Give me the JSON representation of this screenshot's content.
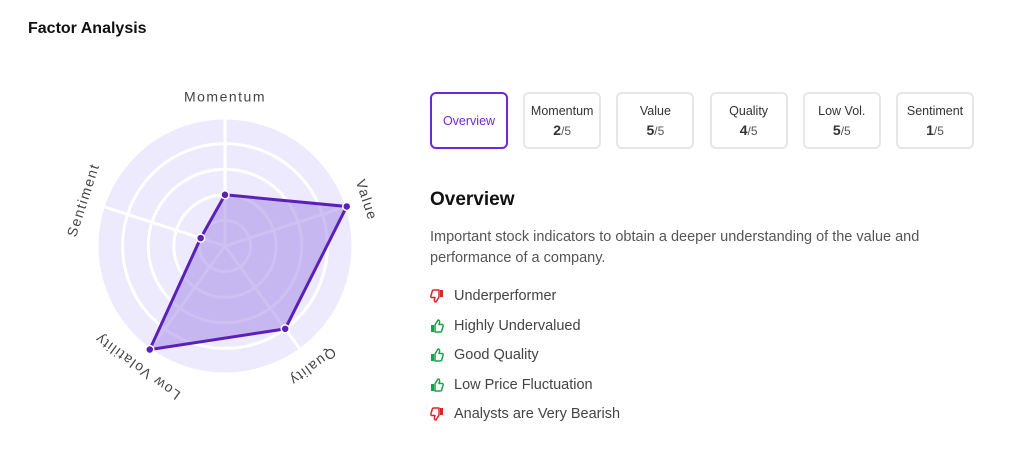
{
  "header": {
    "title": "Factor Analysis"
  },
  "chart_data": {
    "type": "radar",
    "categories": [
      "Momentum",
      "Value",
      "Quality",
      "Low Volatility",
      "Sentiment"
    ],
    "values": [
      2,
      5,
      4,
      5,
      1
    ],
    "rlim": [
      0,
      5
    ],
    "rticks": [
      1,
      2,
      3,
      4,
      5
    ],
    "color": "#5b21b6",
    "fill": "#a58ce8",
    "grid": true
  },
  "tabs": {
    "selected": 0,
    "items": [
      "Overview",
      "Momentum",
      "Value",
      "Quality",
      "Low Vol.",
      "Sentiment"
    ],
    "score_suffix": "/5"
  },
  "overview": {
    "heading": "Overview",
    "description": "Important stock indicators to obtain a deeper understanding of the value and performance of a company.",
    "items": [
      {
        "text": "Underperformer",
        "sentiment": "negative"
      },
      {
        "text": "Highly Undervalued",
        "sentiment": "positive"
      },
      {
        "text": "Good Quality",
        "sentiment": "positive"
      },
      {
        "text": "Low Price Fluctuation",
        "sentiment": "positive"
      },
      {
        "text": "Analysts are Very Bearish",
        "sentiment": "negative"
      }
    ]
  }
}
